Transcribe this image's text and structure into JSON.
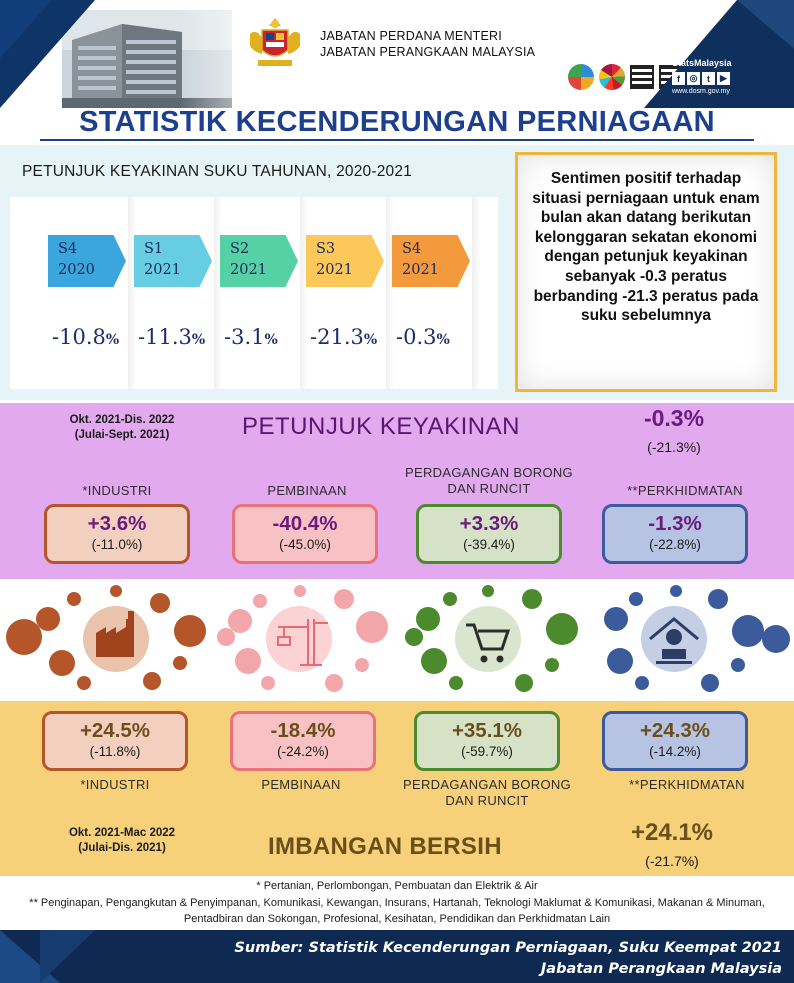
{
  "header": {
    "agency_line1": "JABATAN PERDANA MENTERI",
    "agency_line2": "JABATAN PERANGKAAN MALAYSIA",
    "brand": "StatsMalaysia",
    "website": "www.dosm.gov.my",
    "social": [
      "f",
      "◎",
      "t",
      "▶"
    ]
  },
  "title": "STATISTIK KECENDERUNGAN PERNIAGAAN",
  "quarterly": {
    "title": "PETUNJUK KEYAKINAN SUKU TAHUNAN, 2020-2021",
    "items": [
      {
        "q": "S4",
        "year": "2020",
        "value": "-10.8",
        "unit": "%",
        "color": "#3aa6dd"
      },
      {
        "q": "S1",
        "year": "2021",
        "value": "-11.3",
        "unit": "%",
        "color": "#66cde2"
      },
      {
        "q": "S2",
        "year": "2021",
        "value": "-3.1",
        "unit": "%",
        "color": "#56d1a6"
      },
      {
        "q": "S3",
        "year": "2021",
        "value": "-21.3",
        "unit": "%",
        "color": "#fcc85a"
      },
      {
        "q": "S4",
        "year": "2021",
        "value": "-0.3",
        "unit": "%",
        "color": "#f39a3c"
      }
    ]
  },
  "summary": "Sentimen positif terhadap situasi perniagaan untuk enam bulan akan datang berikutan kelonggaran sekatan ekonomi dengan petunjuk keyakinan sebanyak -0.3 peratus berbanding -21.3 peratus pada suku sebelumnya",
  "confidence": {
    "period": "Okt. 2021-Dis. 2022",
    "prev_period": "(Julai-Sept. 2021)",
    "title": "PETUNJUK KEYAKINAN",
    "overall": "-0.3%",
    "overall_prev": "(-21.3%)",
    "sectors": [
      {
        "label": "*INDUSTRI",
        "value": "+3.6%",
        "prev": "(-11.0%)"
      },
      {
        "label": "PEMBINAAN",
        "value": "-40.4%",
        "prev": "(-45.0%)"
      },
      {
        "label": "PERDAGANGAN BORONG DAN RUNCIT",
        "value": "+3.3%",
        "prev": "(-39.4%)"
      },
      {
        "label": "**PERKHIDMATAN",
        "value": "-1.3%",
        "prev": "(-22.8%)"
      }
    ]
  },
  "icons": [
    "factory-icon",
    "crane-icon",
    "shopping-cart-icon",
    "services-icon"
  ],
  "net_balance": {
    "period": "Okt. 2021-Mac 2022",
    "prev_period": "(Julai-Dis. 2021)",
    "title": "IMBANGAN BERSIH",
    "overall": "+24.1%",
    "overall_prev": "(-21.7%)",
    "sectors": [
      {
        "label": "*INDUSTRI",
        "value": "+24.5%",
        "prev": "(-11.8%)"
      },
      {
        "label": "PEMBINAAN",
        "value": "-18.4%",
        "prev": "(-24.2%)"
      },
      {
        "label": "PERDAGANGAN BORONG DAN RUNCIT",
        "value": "+35.1%",
        "prev": "(-59.7%)"
      },
      {
        "label": "**PERKHIDMATAN",
        "value": "+24.3%",
        "prev": "(-14.2%)"
      }
    ]
  },
  "notes": {
    "note1": "* Pertanian, Perlombongan, Pembuatan dan Elektrik & Air",
    "note2": "** Penginapan, Pengangkutan & Penyimpanan, Komunikasi, Kewangan, Insurans, Hartanah, Teknologi Maklumat & Komunikasi, Makanan & Minuman, Pentadbiran dan Sokongan, Profesional, Kesihatan, Pendidikan dan Perkhidmatan Lain"
  },
  "source": {
    "line1": "Sumber:  Statistik Kecenderungan Perniagaan, Suku Keempat 2021",
    "line2": "Jabatan Perangkaan Malaysia"
  },
  "colors": {
    "title_blue": "#1d3f8f",
    "purple_band": "#e2a9ee",
    "yellow_band": "#f7d07a",
    "industri": "#b5562a",
    "pembinaan": "#e9727a",
    "perdagangan": "#4c8a2e",
    "perkhidmatan": "#3b5b9c"
  }
}
